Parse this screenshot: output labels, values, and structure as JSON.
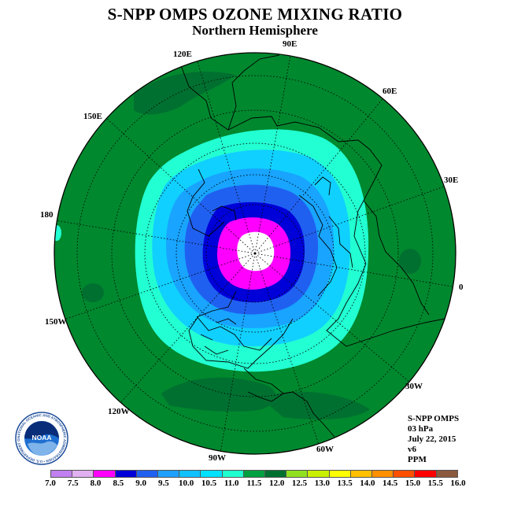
{
  "title": "S-NPP OMPS OZONE MIXING RATIO",
  "subtitle": "Northern Hemisphere",
  "longitude_labels": {
    "lon_90e": "90E",
    "lon_120e": "120E",
    "lon_60e": "60E",
    "lon_150e": "150E",
    "lon_30e": "30E",
    "lon_180": "180",
    "lon_0": "0",
    "lon_150w": "150W",
    "lon_30w": "30W",
    "lon_120w": "120W",
    "lon_60w": "60W",
    "lon_90w": "90W"
  },
  "info": {
    "instrument": "S-NPP OMPS",
    "level": "03 hPa",
    "date": "July 22, 2015",
    "version": "v6",
    "units": "PPM"
  },
  "colorbar": {
    "labels": [
      "7.0",
      "7.5",
      "8.0",
      "8.5",
      "9.0",
      "9.5",
      "10.0",
      "10.5",
      "11.0",
      "11.5",
      "12.0",
      "12.5",
      "13.0",
      "13.5",
      "14.0",
      "14.5",
      "15.0",
      "15.5",
      "16.0"
    ],
    "colors": [
      "#c080f0",
      "#e0b0f0",
      "#ff00ff",
      "#0000d8",
      "#2060f0",
      "#1ea0ff",
      "#10c0ff",
      "#00e0ff",
      "#20ffd0",
      "#00a040",
      "#007030",
      "#90e020",
      "#c8f000",
      "#ffff00",
      "#ffc000",
      "#ff9000",
      "#ff5000",
      "#ff0000",
      "#8b5a3c"
    ]
  },
  "logo": {
    "name": "NOAA",
    "ring_text": "NATIONAL OCEANIC AND ATMOSPHERIC ADMINISTRATION • U.S. DEPARTMENT OF COMMERCE"
  },
  "map_colors": {
    "outer": "#00882e",
    "dark_patch": "#007030",
    "c_10_5": "#22ffd2",
    "c_10_0": "#10d0ff",
    "c_9_5": "#18a4ff",
    "c_9_0": "#2060f0",
    "c_8_5": "#0000d8",
    "c_8_0": "#ff00ff",
    "center": "#ffffff"
  }
}
